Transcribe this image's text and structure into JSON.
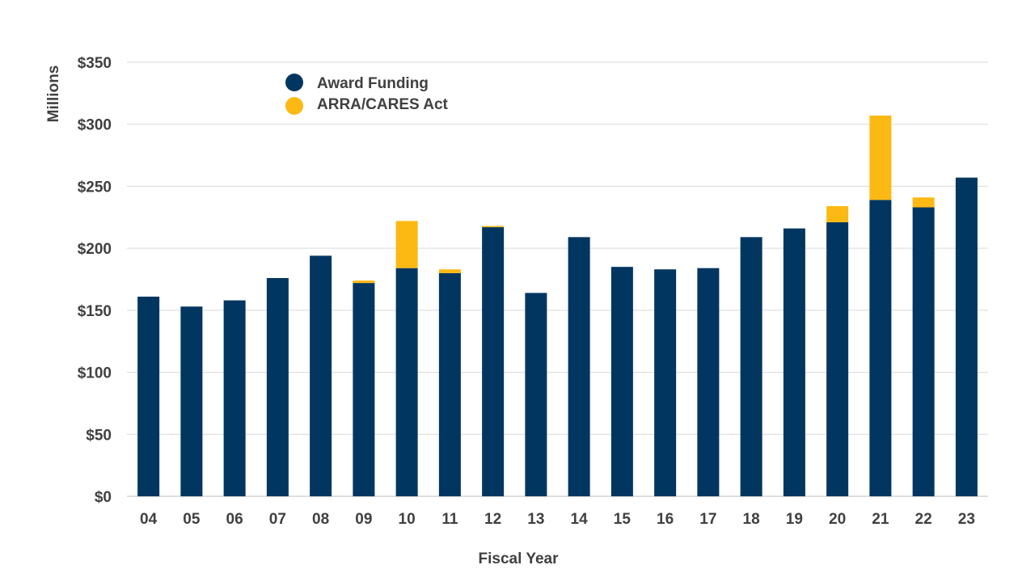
{
  "chart_data": {
    "type": "bar",
    "stacked": true,
    "title": "",
    "xlabel": "Fiscal Year",
    "ylabel": "Millions",
    "ylim": [
      0,
      350
    ],
    "yticks": [
      0,
      50,
      100,
      150,
      200,
      250,
      300,
      350
    ],
    "ytick_labels": [
      "$0",
      "$50",
      "$100",
      "$150",
      "$200",
      "$250",
      "$300",
      "$350"
    ],
    "grid": "horizontal",
    "legend_position": "top-left",
    "categories": [
      "04",
      "05",
      "06",
      "07",
      "08",
      "09",
      "10",
      "11",
      "12",
      "13",
      "14",
      "15",
      "16",
      "17",
      "18",
      "19",
      "20",
      "21",
      "22",
      "23"
    ],
    "series": [
      {
        "name": "Award Funding",
        "color": "#003660",
        "values": [
          161,
          153,
          158,
          176,
          194,
          172,
          184,
          180,
          217,
          164,
          209,
          185,
          183,
          184,
          209,
          216,
          221,
          239,
          233,
          257
        ]
      },
      {
        "name": "ARRA/CARES Act",
        "color": "#FDB913",
        "values": [
          0,
          0,
          0,
          0,
          0,
          2,
          38,
          3,
          1,
          0,
          0,
          0,
          0,
          0,
          0,
          0,
          13,
          68,
          8,
          0
        ]
      }
    ]
  }
}
